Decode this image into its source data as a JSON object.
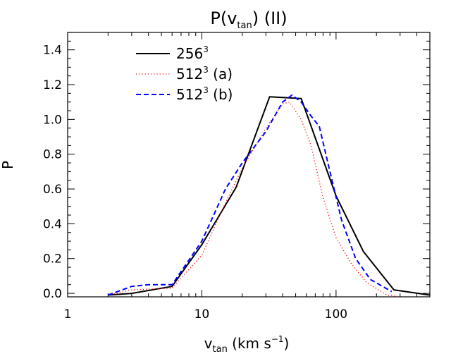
{
  "chart_data": {
    "type": "line",
    "title": "P(v",
    "title_sub": "tan",
    "title_tail": ")  (II)",
    "xlabel": "v",
    "xlabel_sub": "tan",
    "xlabel_units": "(km s",
    "xlabel_exp": "−1",
    "xlabel_close": ")",
    "ylabel": "P",
    "xscale": "log",
    "xlim": [
      1,
      500
    ],
    "ylim": [
      -0.02,
      1.5
    ],
    "x_ticks": [
      {
        "value": 1,
        "label": "1"
      },
      {
        "value": 10,
        "label": "10"
      },
      {
        "value": 100,
        "label": "100"
      }
    ],
    "y_ticks": [
      {
        "value": 0.0,
        "label": "0.0"
      },
      {
        "value": 0.2,
        "label": "0.2"
      },
      {
        "value": 0.4,
        "label": "0.4"
      },
      {
        "value": 0.6,
        "label": "0.6"
      },
      {
        "value": 0.8,
        "label": "0.8"
      },
      {
        "value": 1.0,
        "label": "1.0"
      },
      {
        "value": 1.2,
        "label": "1.2"
      },
      {
        "value": 1.4,
        "label": "1.4"
      }
    ],
    "legend_position": "top-left",
    "series": [
      {
        "name": "256",
        "name_sup": "3",
        "name_tail": "",
        "color": "#000000",
        "style": "solid",
        "x": [
          2,
          3,
          6,
          10,
          18,
          32,
          55,
          100,
          160,
          270,
          500
        ],
        "values": [
          -0.01,
          0.0,
          0.04,
          0.28,
          0.61,
          1.13,
          1.12,
          0.56,
          0.24,
          0.02,
          -0.01
        ]
      },
      {
        "name": "512",
        "name_sup": "3",
        "name_tail": "(a)",
        "color": "#ff0000",
        "style": "dotted",
        "x": [
          2,
          3,
          6,
          10,
          15,
          20,
          30,
          40,
          45,
          55,
          65,
          80,
          100,
          130,
          170,
          240,
          300
        ],
        "values": [
          -0.01,
          0.02,
          0.03,
          0.22,
          0.52,
          0.72,
          0.95,
          1.09,
          1.1,
          1.0,
          0.85,
          0.55,
          0.32,
          0.17,
          0.06,
          -0.01,
          -0.02
        ]
      },
      {
        "name": "512",
        "name_sup": "3",
        "name_tail": "(b)",
        "color": "#0000ff",
        "style": "dashed",
        "x": [
          2,
          3,
          4,
          6,
          10,
          15,
          20,
          30,
          40,
          47,
          55,
          65,
          75,
          90,
          110,
          140,
          180,
          260
        ],
        "values": [
          -0.01,
          0.04,
          0.05,
          0.05,
          0.3,
          0.6,
          0.75,
          0.93,
          1.1,
          1.14,
          1.1,
          1.02,
          0.96,
          0.7,
          0.42,
          0.2,
          0.08,
          0.01
        ]
      }
    ]
  }
}
